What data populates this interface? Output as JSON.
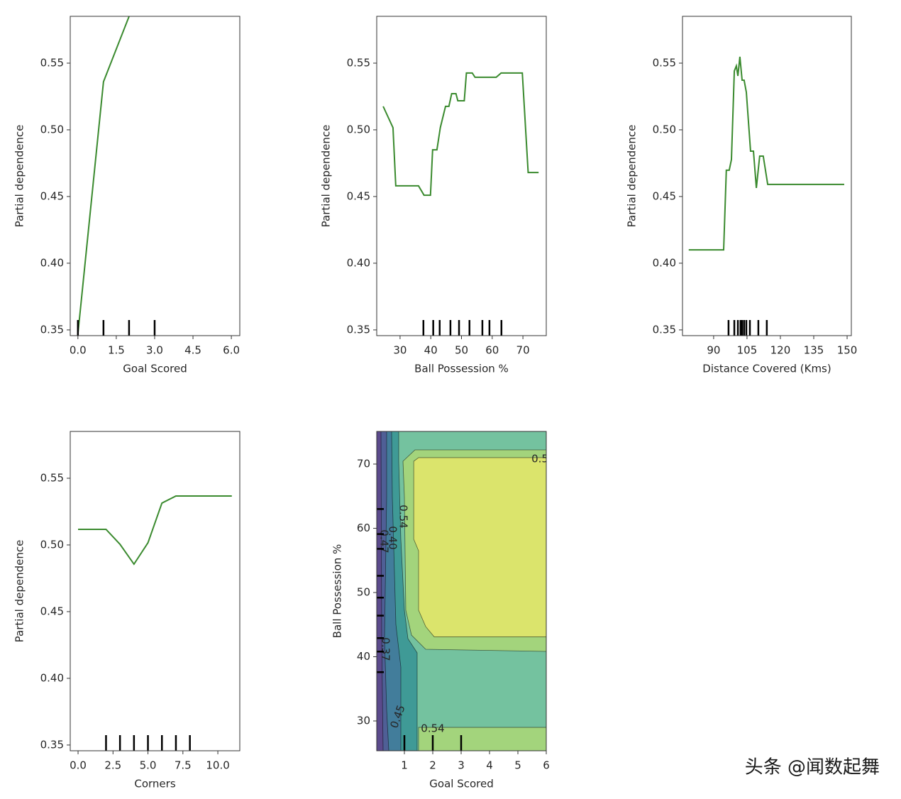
{
  "chart_data": [
    {
      "type": "line",
      "xlabel": "Goal Scored",
      "ylabel": "Partial dependence",
      "color": "#3a8a2e",
      "x": [
        0,
        1,
        2
      ],
      "values": [
        0.347,
        0.536,
        0.585
      ],
      "xlim": [
        -0.3,
        6.33
      ],
      "ylim": [
        0.3457,
        0.5851
      ],
      "xticks": [
        {
          "value": 0,
          "label": "0.0"
        },
        1.5,
        {
          "value": 3,
          "label": "3.0"
        },
        4.5,
        {
          "value": 6,
          "label": "6.0"
        }
      ],
      "yticks": [
        0.35,
        {
          "value": 0.4,
          "label": "0.40"
        },
        0.45,
        {
          "value": 0.5,
          "label": "0.50"
        },
        0.55
      ],
      "deciles": [
        0,
        1,
        2,
        3
      ]
    },
    {
      "type": "line",
      "xlabel": "Ball Possession %",
      "ylabel": "Partial dependence",
      "color": "#3a8a2e",
      "x": [
        24.5,
        27.7,
        28.6,
        36.0,
        37.8,
        39.9,
        40.6,
        42.0,
        43.1,
        44.8,
        45.9,
        46.8,
        48.2,
        48.8,
        50.9,
        51.6,
        53.5,
        54.4,
        61.3,
        62.9,
        69.8,
        71.7,
        75.1
      ],
      "values": [
        0.5176,
        0.5016,
        0.458,
        0.458,
        0.451,
        0.451,
        0.485,
        0.485,
        0.5016,
        0.5176,
        0.5176,
        0.5271,
        0.5271,
        0.5218,
        0.5218,
        0.5426,
        0.5426,
        0.5394,
        0.5394,
        0.5426,
        0.5426,
        0.468,
        0.468
      ],
      "xlim": [
        22.4,
        77.6
      ],
      "ylim": [
        0.3457,
        0.5851
      ],
      "xticks": [
        30,
        40,
        50,
        60,
        70
      ],
      "yticks": [
        0.35,
        {
          "value": 0.4,
          "label": "0.40"
        },
        0.45,
        {
          "value": 0.5,
          "label": "0.50"
        },
        0.55
      ],
      "deciles": [
        37.6,
        40.8,
        42.9,
        46.4,
        49.2,
        52.6,
        56.8,
        59.1,
        63.0
      ]
    },
    {
      "type": "line",
      "xlabel": "Distance Covered (Kms)",
      "ylabel": "Partial dependence",
      "color": "#3a8a2e",
      "x": [
        78.8,
        94.5,
        95.7,
        97.0,
        98.0,
        99.3,
        100.2,
        100.9,
        101.8,
        102.8,
        103.7,
        104.7,
        106.6,
        107.9,
        109.2,
        110.7,
        112.3,
        114.3,
        148.7
      ],
      "values": [
        0.41,
        0.41,
        0.4697,
        0.4697,
        0.4777,
        0.5441,
        0.5479,
        0.5404,
        0.5548,
        0.5372,
        0.5372,
        0.5282,
        0.484,
        0.484,
        0.4564,
        0.4803,
        0.4803,
        0.4591,
        0.4591
      ],
      "xlim": [
        76,
        151.9
      ],
      "ylim": [
        0.3457,
        0.5851
      ],
      "xticks": [
        90,
        105,
        120,
        135,
        150
      ],
      "yticks": [
        0.35,
        {
          "value": 0.4,
          "label": "0.40"
        },
        0.45,
        {
          "value": 0.5,
          "label": "0.50"
        },
        0.55
      ],
      "deciles": [
        96.7,
        99.3,
        100.9,
        102.1,
        102.8,
        103.7,
        104.7,
        106.3,
        110.1,
        113.9
      ]
    },
    {
      "type": "line",
      "xlabel": "Corners",
      "ylabel": "Partial dependence",
      "color": "#3a8a2e",
      "x": [
        0,
        2,
        3,
        4,
        5,
        6,
        7,
        8,
        11
      ],
      "values": [
        0.5117,
        0.5117,
        0.5005,
        0.4856,
        0.5016,
        0.5314,
        0.5367,
        0.5367,
        0.5367
      ],
      "xlim": [
        -0.56,
        11.57
      ],
      "ylim": [
        0.3457,
        0.5851
      ],
      "xticks": [
        {
          "value": 0,
          "label": "0.0"
        },
        2.5,
        {
          "value": 5,
          "label": "5.0"
        },
        7.5,
        {
          "value": 10,
          "label": "10.0"
        }
      ],
      "yticks": [
        0.35,
        {
          "value": 0.4,
          "label": "0.40"
        },
        0.45,
        {
          "value": 0.5,
          "label": "0.50"
        },
        0.55
      ],
      "deciles": [
        2,
        3,
        4,
        5,
        6,
        7,
        8
      ]
    },
    {
      "type": "contour",
      "xlabel": "Goal Scored",
      "ylabel": "Ball Possession %",
      "xlim": [
        0.025,
        6
      ],
      "ylim": [
        25.36,
        75.08
      ],
      "xticks": [
        1,
        2,
        3,
        4,
        5,
        6
      ],
      "yticks": [
        30,
        40,
        50,
        60,
        70
      ],
      "contours": [
        {
          "level": 0.33,
          "color": "#5b4a8c",
          "polygons": [
            [
              [
                0.025,
                75.08
              ],
              [
                6,
                75.08
              ],
              [
                6,
                25.36
              ],
              [
                0.025,
                25.36
              ]
            ]
          ]
        },
        {
          "level": 0.37,
          "color": "#4f5f96",
          "polygons": [
            [
              [
                0.175,
                75.08
              ],
              [
                6,
                75.08
              ],
              [
                6,
                25.36
              ],
              [
                0.25,
                25.36
              ],
              [
                0.2,
                42.82
              ]
            ]
          ]
        },
        {
          "level": 0.4,
          "color": "#427d9b",
          "polygons": [
            [
              [
                0.375,
                75.08
              ],
              [
                6,
                75.08
              ],
              [
                6,
                25.36
              ],
              [
                0.45,
                25.36
              ],
              [
                0.375,
                31.77
              ],
              [
                0.3,
                42.82
              ],
              [
                0.375,
                64.92
              ]
            ]
          ]
        },
        {
          "level": 0.45,
          "color": "#3f9a96",
          "polygons": [
            [
              [
                0.55,
                75.08
              ],
              [
                6,
                75.08
              ],
              [
                6,
                25.36
              ],
              [
                0.875,
                25.36
              ],
              [
                0.875,
                38.4
              ],
              [
                0.7,
                45.03
              ],
              [
                0.575,
                64.92
              ]
            ]
          ]
        },
        {
          "level": 0.5,
          "color": "#74c29f",
          "polygons": [
            [
              [
                0.8,
                75.08
              ],
              [
                6,
                75.08
              ],
              [
                6,
                25.36
              ],
              [
                1.45,
                25.36
              ],
              [
                1.45,
                40.61
              ],
              [
                1.125,
                42.82
              ],
              [
                1,
                47.24
              ],
              [
                0.875,
                58.29
              ],
              [
                0.8,
                70.44
              ]
            ]
          ]
        },
        {
          "level": 0.54,
          "color": "#a3d47c",
          "polygons": [
            [
              [
                0.95,
                70.44
              ],
              [
                1.375,
                72.21
              ],
              [
                6,
                72.21
              ],
              [
                6,
                40.83
              ],
              [
                1.75,
                41.16
              ],
              [
                1.25,
                43.37
              ],
              [
                1.05,
                47.24
              ],
              [
                1,
                64.92
              ]
            ],
            [
              [
                1.5,
                29.0
              ],
              [
                6,
                29.0
              ],
              [
                6,
                25.36
              ],
              [
                1.5,
                25.36
              ]
            ]
          ]
        },
        {
          "level": 0.56,
          "color": "#dbe46c",
          "polygons": [
            [
              [
                1.33,
                70.44
              ],
              [
                1.5,
                71.0
              ],
              [
                6,
                71.0
              ],
              [
                6,
                43.1
              ],
              [
                2.05,
                43.1
              ],
              [
                1.75,
                44.7
              ],
              [
                1.5,
                47.24
              ],
              [
                1.5,
                56.5
              ],
              [
                1.33,
                58.29
              ]
            ]
          ]
        }
      ],
      "contour_labels": [
        "0.5",
        "0.54",
        "0.40",
        "0.47",
        "0.37",
        "0.45",
        "0.54"
      ],
      "x_deciles": [
        1,
        2,
        3
      ],
      "y_deciles": [
        37.6,
        40.8,
        42.9,
        46.4,
        49.2,
        52.6,
        56.8,
        59.1,
        63.0
      ]
    }
  ],
  "watermark": "头条 @闻数起舞"
}
